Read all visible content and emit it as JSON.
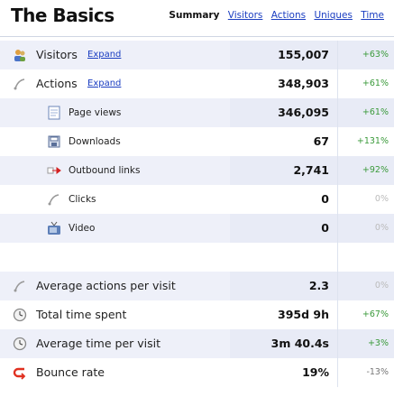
{
  "header": {
    "title": "The Basics",
    "tabs": [
      {
        "label": "Summary",
        "active": true
      },
      {
        "label": "Visitors",
        "active": false
      },
      {
        "label": "Actions",
        "active": false
      },
      {
        "label": "Uniques",
        "active": false
      },
      {
        "label": "Time",
        "active": false
      }
    ]
  },
  "rows": [
    {
      "label": "Visitors",
      "expand": "Expand",
      "value": "155,007",
      "change": "+63%",
      "icon": "visitors-icon"
    },
    {
      "label": "Actions",
      "expand": "Expand",
      "value": "348,903",
      "change": "+61%",
      "icon": "actions-icon"
    },
    {
      "label": "Page views",
      "value": "346,095",
      "change": "+61%",
      "icon": "page-icon"
    },
    {
      "label": "Downloads",
      "value": "67",
      "change": "+131%",
      "icon": "download-icon"
    },
    {
      "label": "Outbound links",
      "value": "2,741",
      "change": "+92%",
      "icon": "outbound-link-icon"
    },
    {
      "label": "Clicks",
      "value": "0",
      "change": "0%",
      "icon": "click-icon"
    },
    {
      "label": "Video",
      "value": "0",
      "change": "0%",
      "icon": "video-icon"
    },
    {
      "label": "Average actions per visit",
      "value": "2.3",
      "change": "0%",
      "icon": "actions-per-visit-icon"
    },
    {
      "label": "Total time spent",
      "value": "395d 9h",
      "change": "+67%",
      "icon": "clock-icon"
    },
    {
      "label": "Average time per visit",
      "value": "3m 40.4s",
      "change": "+3%",
      "icon": "clock-icon"
    },
    {
      "label": "Bounce rate",
      "value": "19%",
      "change": "-13%",
      "icon": "bounce-icon"
    }
  ],
  "colors": {
    "positive": "#3a9a3a",
    "neutral": "#bbbbbb",
    "negative": "#777777",
    "link": "#1a3dc1",
    "stripe": "#eef0f9"
  }
}
